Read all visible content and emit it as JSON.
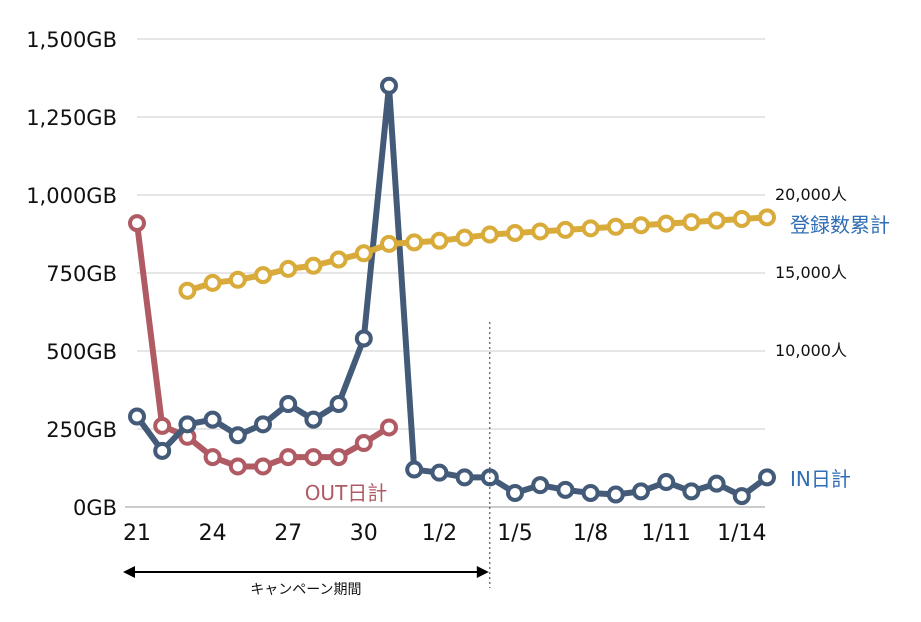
{
  "chart_data": {
    "type": "line",
    "x_tick_labels": [
      "21",
      "24",
      "27",
      "30",
      "1/2",
      "1/5",
      "1/8",
      "1/11",
      "1/14"
    ],
    "y_left": {
      "tick_labels": [
        "0GB",
        "250GB",
        "500GB",
        "750GB",
        "1,000GB",
        "1,250GB",
        "1,500GB"
      ],
      "range": [
        0,
        1500
      ]
    },
    "y_right": {
      "tick_labels": [
        "10,000人",
        "15,000人",
        "20,000人"
      ],
      "range": [
        0,
        30000
      ]
    },
    "series": [
      {
        "name": "OUT日計",
        "axis": "left",
        "color": "#b05a64",
        "start_day": 0,
        "values": [
          910,
          260,
          225,
          160,
          130,
          130,
          160,
          160,
          160,
          205,
          255
        ]
      },
      {
        "name": "IN日計",
        "axis": "left",
        "color": "#435a78",
        "start_day": 0,
        "values": [
          290,
          180,
          265,
          280,
          230,
          265,
          330,
          280,
          330,
          540,
          1350,
          120,
          110,
          95,
          95,
          45,
          70,
          55,
          45,
          40,
          50,
          80,
          50,
          75,
          35,
          95
        ]
      },
      {
        "name": "登録数累計",
        "axis": "right",
        "color": "#d9ab3a",
        "start_day": 2,
        "values": [
          13800,
          14300,
          14500,
          14800,
          15200,
          15400,
          15800,
          16200,
          16800,
          16900,
          17000,
          17200,
          17400,
          17500,
          17600,
          17700,
          17800,
          17900,
          18000,
          18100,
          18200,
          18300,
          18400,
          18500
        ]
      }
    ],
    "annotation": {
      "label": "キャンペーン期間",
      "from_day": 0,
      "to_day": 14
    },
    "grid": true,
    "colors": {
      "gridline": "#cccccc",
      "text": "#111111"
    }
  }
}
